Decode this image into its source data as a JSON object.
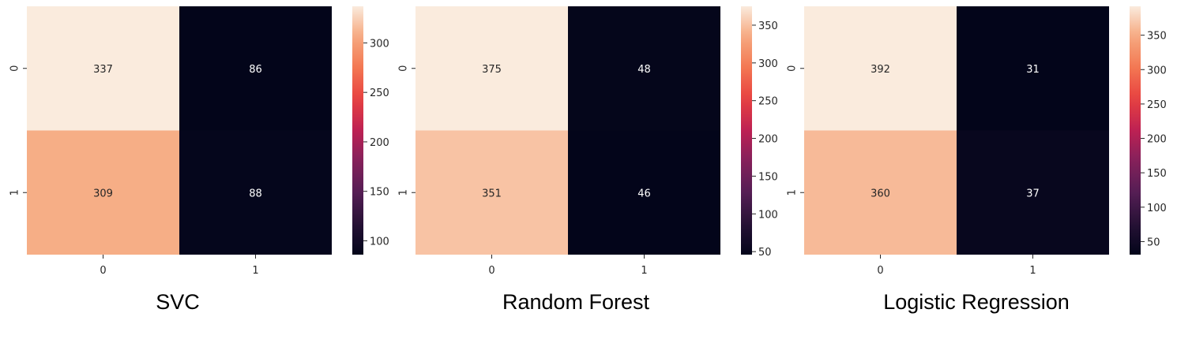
{
  "chart_data": [
    {
      "type": "heatmap",
      "title": "SVC",
      "x_tick_labels": [
        "0",
        "1"
      ],
      "y_tick_labels": [
        "0",
        "1"
      ],
      "values": [
        [
          337,
          86
        ],
        [
          309,
          88
        ]
      ],
      "colorbar": {
        "min": 86,
        "max": 337,
        "ticks": [
          100,
          150,
          200,
          250,
          300
        ]
      },
      "colormap": "rocket"
    },
    {
      "type": "heatmap",
      "title": "Random Forest",
      "x_tick_labels": [
        "0",
        "1"
      ],
      "y_tick_labels": [
        "0",
        "1"
      ],
      "values": [
        [
          375,
          48
        ],
        [
          351,
          46
        ]
      ],
      "colorbar": {
        "min": 46,
        "max": 375,
        "ticks": [
          50,
          100,
          150,
          200,
          250,
          300,
          350
        ]
      },
      "colormap": "rocket"
    },
    {
      "type": "heatmap",
      "title": "Logistic Regression",
      "x_tick_labels": [
        "0",
        "1"
      ],
      "y_tick_labels": [
        "0",
        "1"
      ],
      "values": [
        [
          392,
          31
        ],
        [
          360,
          37
        ]
      ],
      "colorbar": {
        "min": 31,
        "max": 392,
        "ticks": [
          50,
          100,
          150,
          200,
          250,
          300,
          350
        ]
      },
      "colormap": "rocket"
    }
  ],
  "colors": {
    "text_on_light": "#262626",
    "text_on_dark": "#ffffff",
    "axis": "#262626"
  }
}
